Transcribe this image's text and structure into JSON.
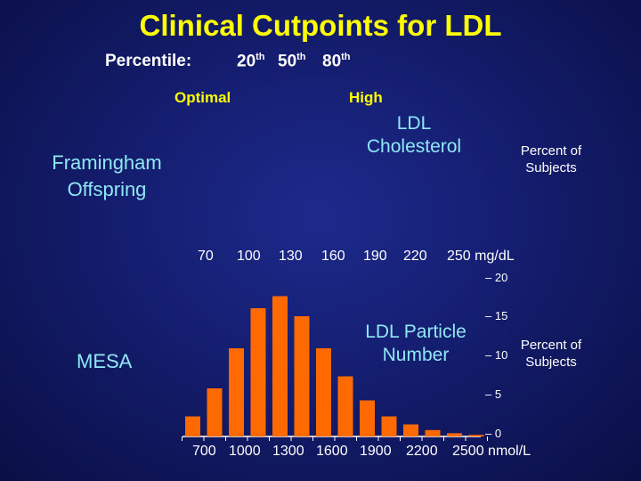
{
  "header": {
    "title": "Clinical Cutpoints for LDL",
    "percentile_label": "Percentile:",
    "percentiles": [
      {
        "num": "20",
        "suffix": "th"
      },
      {
        "num": "50",
        "suffix": "th"
      },
      {
        "num": "80",
        "suffix": "th"
      }
    ],
    "optimal": "Optimal",
    "high": "High"
  },
  "top_panel": {
    "cohort": "Framingham Offspring",
    "measure": "LDL Cholesterol",
    "y_label": "Percent of Subjects",
    "x_ticks": [
      "70",
      "100",
      "130",
      "160",
      "190",
      "220"
    ],
    "x_unit": "250 mg/dL"
  },
  "bottom_panel": {
    "cohort": "MESA",
    "measure": "LDL Particle Number",
    "y_label": "Percent of Subjects",
    "y_ticks": [
      "20",
      "15",
      "10",
      "5",
      "0"
    ],
    "x_ticks": [
      "700",
      "1000",
      "1300",
      "1600",
      "1900",
      "2200"
    ],
    "x_unit": "2500 nmol/L"
  },
  "colors": {
    "bar": "#ff6a00",
    "title": "#ffff00",
    "label": "#8fe8f5",
    "axis": "#ffffff"
  },
  "chart_data": {
    "type": "bar",
    "title": "LDL Particle Number (MESA)",
    "xlabel": "nmol/L",
    "ylabel": "Percent of Subjects",
    "ylim": [
      0,
      20
    ],
    "categories": [
      "<700",
      "700-850",
      "850-1000",
      "1000-1150",
      "1150-1300",
      "1300-1450",
      "1450-1600",
      "1600-1750",
      "1750-1900",
      "1900-2050",
      "2050-2200",
      "2200-2350",
      "2350-2500",
      ">2500"
    ],
    "values": [
      2.5,
      6.0,
      11.0,
      16.0,
      17.5,
      15.0,
      11.0,
      7.5,
      4.5,
      2.5,
      1.5,
      0.8,
      0.4,
      0.2
    ]
  }
}
